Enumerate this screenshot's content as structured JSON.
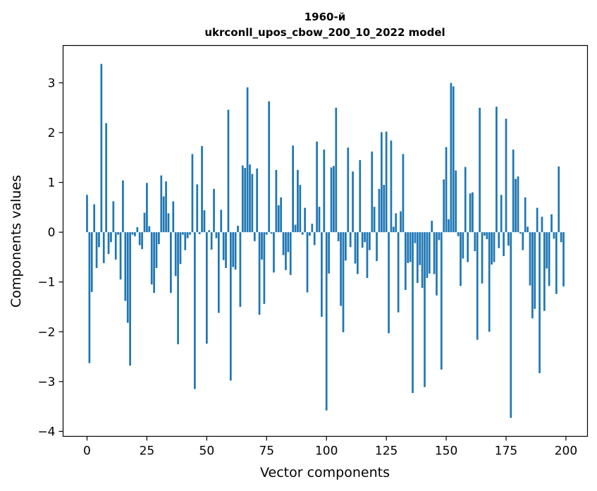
{
  "chart_data": {
    "type": "bar",
    "title_line1": "1960-й",
    "title_line2": "ukrconll_upos_cbow_200_10_2022 model",
    "xlabel": "Vector components",
    "ylabel": "Components values",
    "xlim": [
      -10,
      209
    ],
    "ylim": [
      -4.1,
      3.75
    ],
    "xticks": [
      0,
      25,
      50,
      75,
      100,
      125,
      150,
      175,
      200
    ],
    "yticks": [
      -4,
      -3,
      -2,
      -1,
      0,
      1,
      2,
      3
    ],
    "ytick_labels": [
      "−4",
      "−3",
      "−2",
      "−1",
      "0",
      "1",
      "2",
      "3"
    ],
    "bar_color": "#1f77b4",
    "grid": false,
    "x": [
      0,
      1,
      2,
      3,
      4,
      5,
      6,
      7,
      8,
      9,
      10,
      11,
      12,
      13,
      14,
      15,
      16,
      17,
      18,
      19,
      20,
      21,
      22,
      23,
      24,
      25,
      26,
      27,
      28,
      29,
      30,
      31,
      32,
      33,
      34,
      35,
      36,
      37,
      38,
      39,
      40,
      41,
      42,
      43,
      44,
      45,
      46,
      47,
      48,
      49,
      50,
      51,
      52,
      53,
      54,
      55,
      56,
      57,
      58,
      59,
      60,
      61,
      62,
      63,
      64,
      65,
      66,
      67,
      68,
      69,
      70,
      71,
      72,
      73,
      74,
      75,
      76,
      77,
      78,
      79,
      80,
      81,
      82,
      83,
      84,
      85,
      86,
      87,
      88,
      89,
      90,
      91,
      92,
      93,
      94,
      95,
      96,
      97,
      98,
      99,
      100,
      101,
      102,
      103,
      104,
      105,
      106,
      107,
      108,
      109,
      110,
      111,
      112,
      113,
      114,
      115,
      116,
      117,
      118,
      119,
      120,
      121,
      122,
      123,
      124,
      125,
      126,
      127,
      128,
      129,
      130,
      131,
      132,
      133,
      134,
      135,
      136,
      137,
      138,
      139,
      140,
      141,
      142,
      143,
      144,
      145,
      146,
      147,
      148,
      149,
      150,
      151,
      152,
      153,
      154,
      155,
      156,
      157,
      158,
      159,
      160,
      161,
      162,
      163,
      164,
      165,
      166,
      167,
      168,
      169,
      170,
      171,
      172,
      173,
      174,
      175,
      176,
      177,
      178,
      179,
      180,
      181,
      182,
      183,
      184,
      185,
      186,
      187,
      188,
      189,
      190,
      191,
      192,
      193,
      194,
      195,
      196,
      197,
      198,
      199
    ],
    "values": [
      0.75,
      -2.63,
      -1.2,
      0.56,
      -0.72,
      -0.3,
      3.38,
      -0.62,
      2.19,
      -0.44,
      -0.2,
      0.62,
      -0.55,
      -0.05,
      -0.95,
      1.04,
      -1.38,
      -1.82,
      -2.68,
      -0.05,
      -0.08,
      0.1,
      -0.26,
      -0.34,
      0.39,
      0.99,
      0.12,
      -1.05,
      -1.22,
      -0.72,
      -0.24,
      1.14,
      0.72,
      1.02,
      0.38,
      -1.22,
      0.62,
      -0.88,
      -2.25,
      -0.64,
      -0.05,
      -0.36,
      -0.12,
      -0.05,
      1.57,
      -3.15,
      0.96,
      -0.04,
      1.73,
      0.44,
      -2.24,
      0.04,
      -0.35,
      0.87,
      -0.12,
      -1.62,
      0.45,
      -0.56,
      -0.72,
      2.46,
      -2.98,
      -0.7,
      -0.75,
      0.13,
      -1.5,
      1.34,
      1.29,
      2.91,
      1.36,
      1.17,
      -0.18,
      1.28,
      -1.66,
      -0.55,
      -1.44,
      -0.05,
      2.63,
      -0.03,
      -0.81,
      1.25,
      0.54,
      0.7,
      -0.46,
      -0.76,
      -0.4,
      -0.86,
      1.74,
      0.15,
      1.25,
      0.95,
      -0.05,
      0.49,
      -1.21,
      -0.07,
      0.17,
      -0.26,
      1.82,
      0.51,
      -1.7,
      1.66,
      -3.58,
      -0.83,
      1.3,
      1.33,
      2.5,
      -0.18,
      -1.48,
      -2.01,
      -0.57,
      1.7,
      -0.3,
      1.22,
      -0.63,
      -0.84,
      1.45,
      -0.31,
      -0.2,
      -0.92,
      -0.36,
      1.62,
      0.51,
      -0.58,
      0.87,
      2.01,
      0.95,
      2.02,
      -2.03,
      1.84,
      0.11,
      0.38,
      -1.61,
      0.42,
      1.57,
      -1.16,
      -0.62,
      -0.6,
      -3.23,
      -0.22,
      -1.02,
      -0.66,
      -1.12,
      -3.11,
      -0.92,
      -0.83,
      0.23,
      -0.84,
      -1.27,
      -0.16,
      -2.76,
      1.06,
      1.71,
      0.26,
      3.0,
      2.93,
      1.24,
      -0.08,
      -1.08,
      -0.53,
      1.31,
      -0.6,
      0.78,
      0.8,
      -0.38,
      -2.16,
      2.5,
      -1.03,
      -0.07,
      -0.14,
      -2.0,
      -0.65,
      -0.6,
      2.52,
      -0.32,
      0.75,
      -0.48,
      2.28,
      -0.27,
      -3.73,
      1.66,
      1.07,
      1.12,
      -0.03,
      -0.36,
      0.7,
      0.11,
      -1.07,
      -1.73,
      -1.54,
      0.49,
      -2.83,
      0.31,
      -1.58,
      -0.73,
      -1.08,
      0.36,
      -0.13,
      -1.24,
      1.32,
      -0.2,
      -1.09
    ]
  }
}
